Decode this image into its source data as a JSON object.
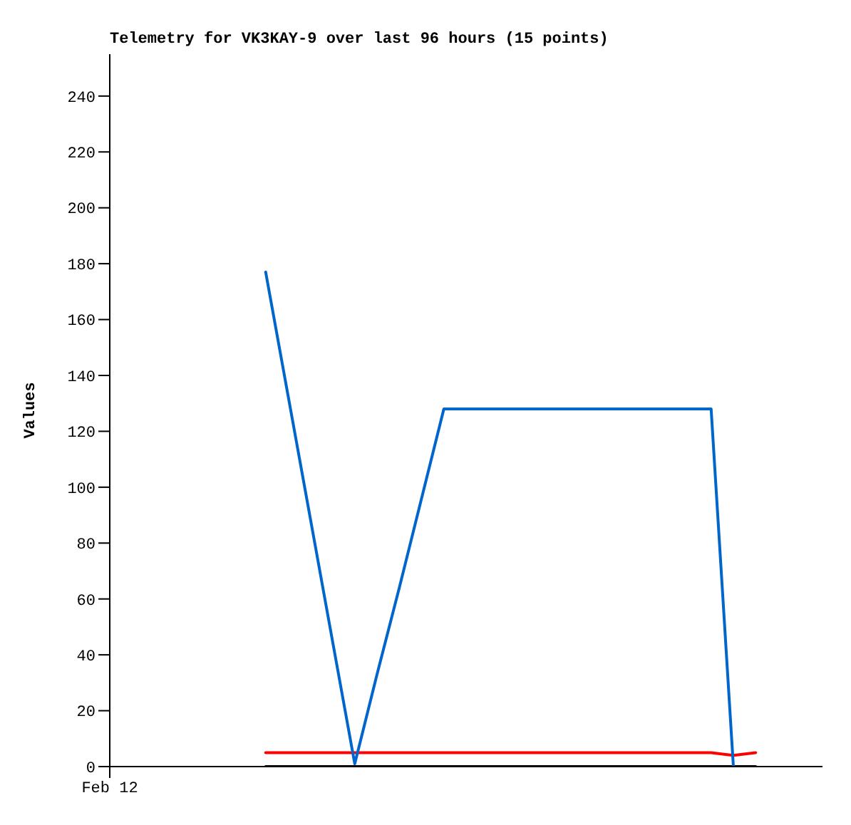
{
  "chart_data": {
    "type": "line",
    "title": "Telemetry for VK3KAY-9 over last 96 hours (15 points)",
    "ylabel": "Values",
    "categories": [
      "Feb 12",
      null,
      null,
      null,
      null,
      null,
      null,
      null,
      null,
      null,
      null,
      null,
      null,
      null,
      null,
      null,
      null,
      null,
      null,
      null,
      null,
      null,
      null,
      null,
      null,
      null,
      null,
      null,
      null,
      null,
      null,
      null,
      null
    ],
    "ylim": [
      0,
      255
    ],
    "yticks": [
      0,
      20,
      40,
      60,
      80,
      100,
      120,
      140,
      160,
      180,
      200,
      220,
      240
    ],
    "series": [
      {
        "color": "#000000",
        "values": [
          null,
          null,
          null,
          null,
          null,
          null,
          null,
          0,
          0,
          0,
          0,
          0,
          0,
          0,
          0,
          0,
          0,
          0,
          0,
          0,
          0,
          0,
          0,
          0,
          0,
          0,
          0,
          0,
          0,
          0,
          null,
          null,
          null
        ]
      },
      {
        "color": "#ff0000",
        "values": [
          null,
          null,
          null,
          null,
          null,
          null,
          null,
          5,
          5,
          5,
          5,
          5,
          5,
          5,
          5,
          5,
          5,
          5,
          5,
          5,
          5,
          5,
          5,
          5,
          5,
          5,
          5,
          5,
          4,
          5,
          null,
          null,
          null
        ]
      },
      {
        "color": "#0066cc",
        "values": [
          null,
          null,
          null,
          null,
          null,
          null,
          null,
          177,
          133,
          89,
          45,
          1,
          33,
          64,
          96,
          128,
          128,
          128,
          128,
          128,
          128,
          128,
          128,
          128,
          128,
          128,
          128,
          128,
          0,
          null,
          null,
          null,
          null
        ]
      }
    ]
  }
}
